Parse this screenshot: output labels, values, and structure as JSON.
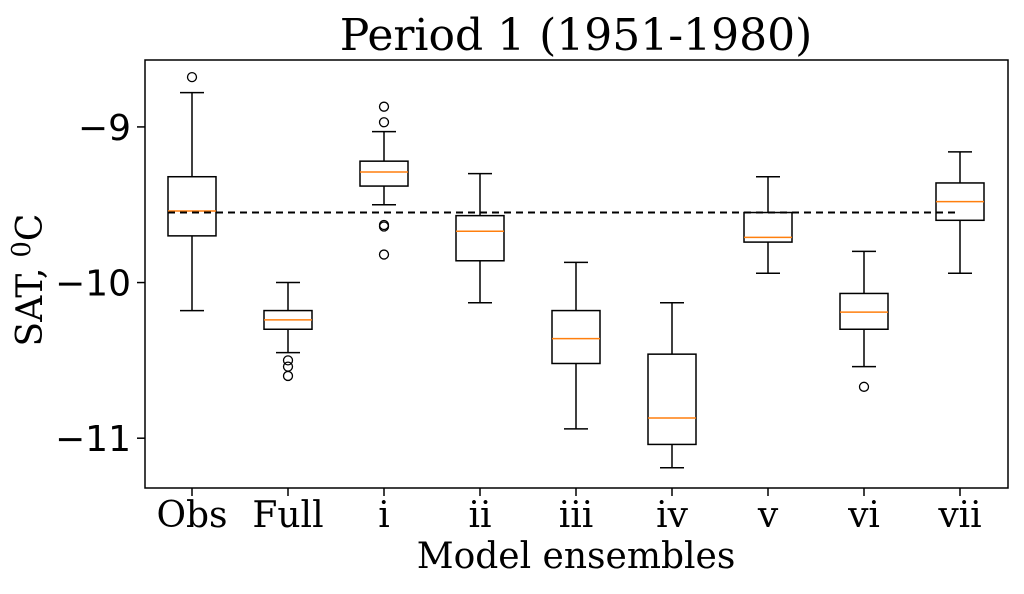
{
  "chart_data": {
    "type": "boxplot",
    "title": "Period 1 (1951-1980)",
    "xlabel": "Model ensembles",
    "ylabel": "SAT,",
    "ylabel_unit_sup": "0",
    "ylabel_unit": "C",
    "ylim": [
      -11.32,
      -8.57
    ],
    "yticks": [
      -9,
      -10,
      -11
    ],
    "ytick_labels": [
      "−9",
      "−10",
      "−11"
    ],
    "reference_line": -9.55,
    "categories": [
      "Obs",
      "Full",
      "i",
      "ii",
      "iii",
      "iv",
      "v",
      "vi",
      "vii"
    ],
    "boxes": [
      {
        "q1": -9.7,
        "median": -9.54,
        "q3": -9.32,
        "whislo": -10.18,
        "whishi": -8.78,
        "fliers": [
          -8.68
        ]
      },
      {
        "q1": -10.3,
        "median": -10.24,
        "q3": -10.18,
        "whislo": -10.45,
        "whishi": -10.0,
        "fliers": [
          -10.5,
          -10.54,
          -10.6
        ]
      },
      {
        "q1": -9.38,
        "median": -9.29,
        "q3": -9.22,
        "whislo": -9.5,
        "whishi": -9.03,
        "fliers": [
          -8.87,
          -8.97,
          -9.63,
          -9.64,
          -9.82
        ]
      },
      {
        "q1": -9.86,
        "median": -9.67,
        "q3": -9.57,
        "whislo": -10.13,
        "whishi": -9.3,
        "fliers": []
      },
      {
        "q1": -10.52,
        "median": -10.36,
        "q3": -10.18,
        "whislo": -10.94,
        "whishi": -9.87,
        "fliers": []
      },
      {
        "q1": -11.04,
        "median": -10.87,
        "q3": -10.46,
        "whislo": -11.19,
        "whishi": -10.13,
        "fliers": []
      },
      {
        "q1": -9.74,
        "median": -9.71,
        "q3": -9.55,
        "whislo": -9.94,
        "whishi": -9.32,
        "fliers": []
      },
      {
        "q1": -10.3,
        "median": -10.19,
        "q3": -10.07,
        "whislo": -10.54,
        "whishi": -9.8,
        "fliers": [
          -10.67
        ]
      },
      {
        "q1": -9.6,
        "median": -9.48,
        "q3": -9.36,
        "whislo": -9.94,
        "whishi": -9.16,
        "fliers": []
      }
    ],
    "colors": {
      "box": "#000000",
      "median": "#ff7f0e",
      "reference": "#000000"
    }
  }
}
